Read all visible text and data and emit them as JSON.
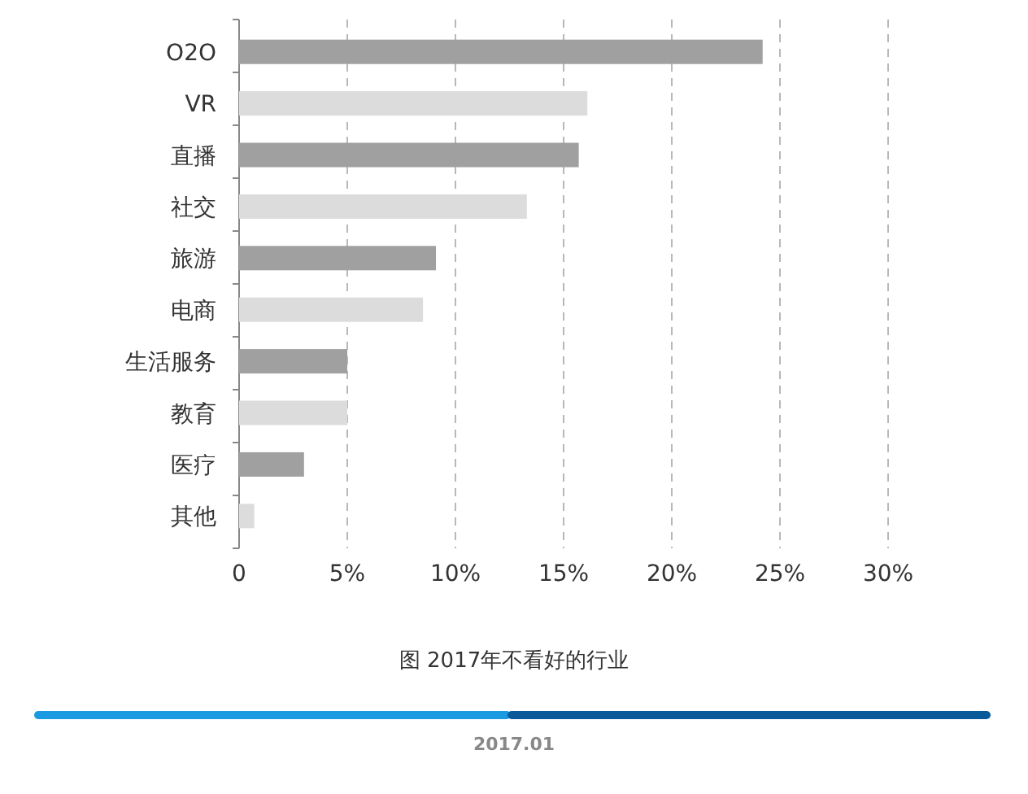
{
  "chart_data": {
    "type": "bar",
    "orientation": "horizontal",
    "title": "图 2017年不看好的行业",
    "categories": [
      "O2O",
      "VR",
      "直播",
      "社交",
      "旅游",
      "电商",
      "生活服务",
      "教育",
      "医疗",
      "其他"
    ],
    "values": [
      24.2,
      16.1,
      15.7,
      13.3,
      9.1,
      8.5,
      5.0,
      5.0,
      3.0,
      0.7
    ],
    "colors": [
      "#a0a0a0",
      "#dcdcdc",
      "#a0a0a0",
      "#dcdcdc",
      "#a0a0a0",
      "#dcdcdc",
      "#a0a0a0",
      "#dcdcdc",
      "#a0a0a0",
      "#dcdcdc"
    ],
    "xlim": [
      0,
      30
    ],
    "xticks": [
      0,
      {
        "value": 5,
        "label": "5%"
      },
      {
        "value": 10,
        "label": "10%"
      },
      {
        "value": 15,
        "label": "15%"
      },
      {
        "value": 20,
        "label": "20%"
      },
      {
        "value": 25,
        "label": "25%"
      },
      {
        "value": 30,
        "label": "30%"
      }
    ],
    "grid": "x",
    "annotations": [
      "2017.01"
    ]
  }
}
